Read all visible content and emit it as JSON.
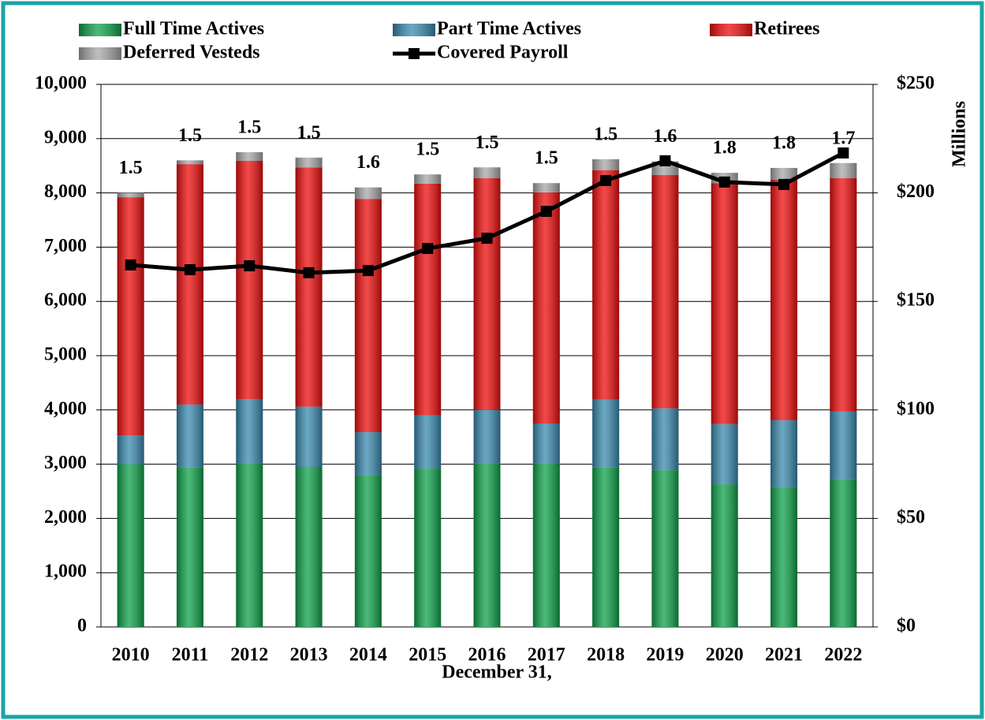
{
  "chart_data": {
    "type": "bar",
    "stacked": true,
    "x_label": "December 31,",
    "y2_label": "Millions",
    "categories": [
      "2010",
      "2011",
      "2012",
      "2013",
      "2014",
      "2015",
      "2016",
      "2017",
      "2018",
      "2019",
      "2020",
      "2021",
      "2022"
    ],
    "series": [
      {
        "name": "Full Time Actives",
        "color": "#0fa24a",
        "values": [
          3000,
          2940,
          3010,
          2950,
          2800,
          2920,
          3010,
          3010,
          2940,
          2890,
          2630,
          2570,
          2720
        ]
      },
      {
        "name": "Part Time Actives",
        "color": "#3a8aae",
        "values": [
          530,
          1160,
          1190,
          1110,
          790,
          980,
          990,
          740,
          1250,
          1140,
          1110,
          1240,
          1250
        ]
      },
      {
        "name": "Retirees",
        "color": "#ee0d0d",
        "values": [
          4390,
          4430,
          4390,
          4410,
          4300,
          4270,
          4270,
          4260,
          4230,
          4300,
          4440,
          4430,
          4300
        ]
      },
      {
        "name": "Deferred Vesteds",
        "color": "#a8a8a8",
        "values": [
          80,
          70,
          160,
          180,
          210,
          170,
          200,
          170,
          200,
          250,
          190,
          220,
          280
        ]
      },
      {
        "name": "Covered Payroll",
        "type": "line",
        "axis": "y2",
        "color": "#000000",
        "values": [
          166.8,
          164.6,
          166.4,
          163.2,
          164.2,
          174.4,
          179.1,
          191.5,
          205.7,
          214.8,
          205.0,
          203.9,
          218.4
        ]
      }
    ],
    "annotations": [
      1.5,
      1.5,
      1.5,
      1.5,
      1.6,
      1.5,
      1.5,
      1.5,
      1.5,
      1.6,
      1.8,
      1.8,
      1.7
    ],
    "ylim": [
      0,
      10000
    ],
    "yticks": [
      0,
      {
        "value": 1000,
        "label": "1,000"
      },
      {
        "value": 2000,
        "label": "2,000"
      },
      {
        "value": 3000,
        "label": "3,000"
      },
      {
        "value": 4000,
        "label": "4,000"
      },
      {
        "value": 5000,
        "label": "5,000"
      },
      {
        "value": 6000,
        "label": "6,000"
      },
      {
        "value": 7000,
        "label": "7,000"
      },
      {
        "value": 8000,
        "label": "8,000"
      },
      {
        "value": 9000,
        "label": "9,000"
      },
      {
        "value": 10000,
        "label": "10,000"
      }
    ],
    "y2lim": [
      0,
      250
    ],
    "y2ticks": [
      {
        "value": 0,
        "label": "$0"
      },
      {
        "value": 50,
        "label": "$50"
      },
      {
        "value": 100,
        "label": "$100"
      },
      {
        "value": 150,
        "label": "$150"
      },
      {
        "value": 200,
        "label": "$200"
      },
      {
        "value": 250,
        "label": "$250"
      }
    ],
    "grid": true
  }
}
